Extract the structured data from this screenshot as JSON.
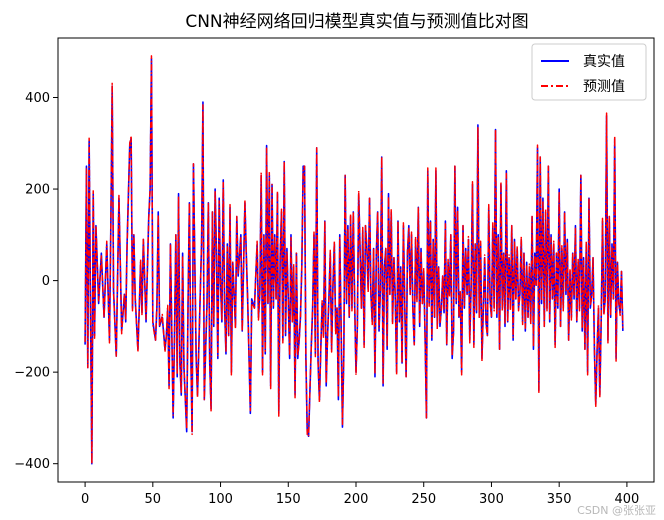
{
  "chart_data": {
    "type": "line",
    "title": "CNN神经网络回归模型真实值与预测值比对图",
    "xlabel": "",
    "ylabel": "",
    "xlim": [
      -20,
      420
    ],
    "ylim": [
      -440,
      530
    ],
    "x_ticks": [
      0,
      50,
      100,
      150,
      200,
      250,
      300,
      350,
      400
    ],
    "y_ticks": [
      -400,
      -200,
      0,
      200,
      400
    ],
    "grid": false,
    "legend_position": "top-right",
    "n_points": 400,
    "key_points": [
      [
        0,
        -140
      ],
      [
        1,
        250
      ],
      [
        2,
        -190
      ],
      [
        3,
        305
      ],
      [
        4,
        -60
      ],
      [
        5,
        -400
      ],
      [
        6,
        190
      ],
      [
        7,
        -120
      ],
      [
        8,
        120
      ],
      [
        10,
        -50
      ],
      [
        12,
        60
      ],
      [
        14,
        -80
      ],
      [
        16,
        80
      ],
      [
        18,
        -130
      ],
      [
        19,
        120
      ],
      [
        20,
        425
      ],
      [
        21,
        -20
      ],
      [
        23,
        -165
      ],
      [
        25,
        180
      ],
      [
        27,
        -110
      ],
      [
        29,
        -30
      ],
      [
        30,
        -90
      ],
      [
        31,
        80
      ],
      [
        33,
        300
      ],
      [
        34,
        310
      ],
      [
        35,
        -60
      ],
      [
        36,
        100
      ],
      [
        37,
        -40
      ],
      [
        39,
        -150
      ],
      [
        40,
        -60
      ],
      [
        41,
        40
      ],
      [
        42,
        -70
      ],
      [
        43,
        90
      ],
      [
        45,
        -90
      ],
      [
        47,
        140
      ],
      [
        48,
        200
      ],
      [
        49,
        485
      ],
      [
        50,
        -90
      ],
      [
        52,
        -130
      ],
      [
        53,
        -60
      ],
      [
        54,
        150
      ],
      [
        55,
        -100
      ],
      [
        57,
        -80
      ],
      [
        59,
        -150
      ],
      [
        60,
        -120
      ],
      [
        61,
        -60
      ],
      [
        62,
        -230
      ],
      [
        63,
        80
      ],
      [
        65,
        -300
      ],
      [
        66,
        -120
      ],
      [
        67,
        100
      ],
      [
        68,
        -210
      ],
      [
        69,
        190
      ],
      [
        70,
        -180
      ],
      [
        71,
        -250
      ],
      [
        72,
        60
      ],
      [
        73,
        -190
      ],
      [
        75,
        -330
      ],
      [
        76,
        -50
      ],
      [
        77,
        170
      ],
      [
        78,
        -150
      ],
      [
        79,
        -330
      ],
      [
        80,
        255
      ],
      [
        82,
        -170
      ],
      [
        83,
        -250
      ],
      [
        85,
        -30
      ],
      [
        86,
        80
      ],
      [
        87,
        390
      ],
      [
        88,
        -260
      ],
      [
        89,
        -150
      ],
      [
        90,
        -50
      ],
      [
        91,
        170
      ],
      [
        92,
        -180
      ],
      [
        93,
        -280
      ],
      [
        94,
        150
      ],
      [
        95,
        -100
      ],
      [
        96,
        200
      ],
      [
        97,
        60
      ],
      [
        98,
        -170
      ],
      [
        99,
        180
      ],
      [
        100,
        -10
      ],
      [
        101,
        -90
      ],
      [
        102,
        220
      ],
      [
        103,
        -60
      ],
      [
        104,
        -160
      ],
      [
        105,
        80
      ],
      [
        106,
        -120
      ],
      [
        107,
        160
      ],
      [
        108,
        -200
      ],
      [
        109,
        40
      ],
      [
        110,
        -30
      ],
      [
        111,
        -100
      ],
      [
        112,
        140
      ],
      [
        113,
        10
      ],
      [
        115,
        100
      ],
      [
        116,
        -110
      ],
      [
        118,
        170
      ],
      [
        119,
        60
      ],
      [
        120,
        -40
      ],
      [
        122,
        -290
      ],
      [
        123,
        -40
      ],
      [
        125,
        -60
      ],
      [
        127,
        80
      ],
      [
        128,
        -80
      ],
      [
        129,
        -30
      ],
      [
        130,
        230
      ],
      [
        131,
        -200
      ],
      [
        132,
        100
      ],
      [
        133,
        -160
      ],
      [
        134,
        295
      ],
      [
        135,
        -50
      ],
      [
        136,
        230
      ],
      [
        137,
        -230
      ],
      [
        138,
        210
      ],
      [
        139,
        -60
      ],
      [
        140,
        100
      ],
      [
        141,
        -40
      ],
      [
        142,
        190
      ],
      [
        143,
        -290
      ],
      [
        144,
        50
      ],
      [
        145,
        150
      ],
      [
        146,
        -130
      ],
      [
        147,
        260
      ],
      [
        148,
        -120
      ],
      [
        149,
        70
      ],
      [
        150,
        -40
      ],
      [
        151,
        -170
      ],
      [
        152,
        100
      ],
      [
        153,
        -90
      ],
      [
        154,
        30
      ],
      [
        155,
        -250
      ],
      [
        156,
        60
      ],
      [
        157,
        -170
      ],
      [
        158,
        -130
      ],
      [
        159,
        -80
      ],
      [
        160,
        30
      ],
      [
        161,
        250
      ],
      [
        162,
        250
      ],
      [
        163,
        -170
      ],
      [
        164,
        -330
      ],
      [
        165,
        -340
      ],
      [
        166,
        -240
      ],
      [
        167,
        -140
      ],
      [
        168,
        -60
      ],
      [
        169,
        100
      ],
      [
        170,
        -160
      ],
      [
        171,
        290
      ],
      [
        172,
        -180
      ],
      [
        173,
        -260
      ],
      [
        174,
        -150
      ],
      [
        175,
        -50
      ],
      [
        176,
        -120
      ],
      [
        177,
        130
      ],
      [
        178,
        -230
      ],
      [
        179,
        -120
      ],
      [
        180,
        -40
      ],
      [
        181,
        60
      ],
      [
        182,
        -150
      ],
      [
        183,
        -10
      ],
      [
        184,
        80
      ],
      [
        185,
        -110
      ],
      [
        186,
        -60
      ],
      [
        187,
        -260
      ],
      [
        188,
        100
      ],
      [
        189,
        -100
      ],
      [
        190,
        -320
      ],
      [
        191,
        -160
      ],
      [
        192,
        230
      ],
      [
        193,
        -50
      ],
      [
        194,
        120
      ],
      [
        195,
        -80
      ],
      [
        196,
        140
      ],
      [
        197,
        -60
      ],
      [
        198,
        150
      ],
      [
        199,
        -50
      ],
      [
        200,
        -200
      ],
      [
        201,
        -100
      ],
      [
        202,
        190
      ],
      [
        203,
        70
      ],
      [
        204,
        -60
      ],
      [
        205,
        110
      ],
      [
        206,
        -140
      ],
      [
        207,
        120
      ],
      [
        208,
        70
      ],
      [
        209,
        -20
      ],
      [
        210,
        180
      ],
      [
        211,
        -30
      ],
      [
        212,
        -90
      ],
      [
        213,
        70
      ],
      [
        214,
        -210
      ],
      [
        215,
        60
      ],
      [
        216,
        150
      ],
      [
        217,
        -110
      ],
      [
        218,
        -20
      ],
      [
        219,
        270
      ],
      [
        220,
        -230
      ],
      [
        221,
        30
      ],
      [
        222,
        70
      ],
      [
        223,
        -150
      ],
      [
        224,
        190
      ],
      [
        225,
        -30
      ],
      [
        226,
        150
      ],
      [
        227,
        -90
      ],
      [
        228,
        50
      ],
      [
        229,
        -40
      ],
      [
        230,
        -200
      ],
      [
        231,
        130
      ],
      [
        232,
        -90
      ],
      [
        233,
        30
      ],
      [
        234,
        -180
      ],
      [
        235,
        120
      ],
      [
        236,
        -50
      ],
      [
        237,
        -210
      ],
      [
        238,
        60
      ],
      [
        239,
        120
      ],
      [
        240,
        -30
      ],
      [
        241,
        100
      ],
      [
        242,
        -60
      ],
      [
        243,
        -140
      ],
      [
        244,
        90
      ],
      [
        245,
        -40
      ],
      [
        246,
        160
      ],
      [
        247,
        -100
      ],
      [
        248,
        70
      ],
      [
        249,
        -50
      ],
      [
        250,
        20
      ],
      [
        251,
        -120
      ],
      [
        252,
        -300
      ],
      [
        253,
        240
      ],
      [
        254,
        -50
      ],
      [
        255,
        130
      ],
      [
        256,
        -130
      ],
      [
        257,
        90
      ],
      [
        258,
        -80
      ],
      [
        259,
        240
      ],
      [
        260,
        -100
      ],
      [
        261,
        30
      ],
      [
        262,
        -100
      ],
      [
        263,
        -60
      ],
      [
        264,
        10
      ],
      [
        265,
        -70
      ],
      [
        266,
        130
      ],
      [
        267,
        -140
      ],
      [
        268,
        40
      ],
      [
        269,
        -30
      ],
      [
        270,
        100
      ],
      [
        271,
        -170
      ],
      [
        272,
        -110
      ],
      [
        273,
        250
      ],
      [
        274,
        -50
      ],
      [
        275,
        160
      ],
      [
        276,
        -80
      ],
      [
        277,
        -30
      ],
      [
        278,
        -200
      ],
      [
        279,
        120
      ],
      [
        280,
        -60
      ],
      [
        281,
        70
      ],
      [
        282,
        -30
      ],
      [
        283,
        90
      ],
      [
        284,
        -130
      ],
      [
        285,
        -10
      ],
      [
        286,
        210
      ],
      [
        287,
        -140
      ],
      [
        288,
        80
      ],
      [
        289,
        -70
      ],
      [
        290,
        340
      ],
      [
        291,
        -80
      ],
      [
        292,
        80
      ],
      [
        293,
        -170
      ],
      [
        294,
        -60
      ],
      [
        295,
        50
      ],
      [
        296,
        -90
      ],
      [
        297,
        -120
      ],
      [
        298,
        160
      ],
      [
        299,
        -40
      ],
      [
        300,
        -80
      ],
      [
        301,
        120
      ],
      [
        302,
        -60
      ],
      [
        303,
        330
      ],
      [
        304,
        -80
      ],
      [
        305,
        100
      ],
      [
        306,
        -150
      ],
      [
        307,
        210
      ],
      [
        308,
        -60
      ],
      [
        309,
        60
      ],
      [
        310,
        -100
      ],
      [
        311,
        240
      ],
      [
        312,
        -90
      ],
      [
        313,
        50
      ],
      [
        314,
        -60
      ],
      [
        315,
        120
      ],
      [
        316,
        -130
      ],
      [
        317,
        90
      ],
      [
        318,
        -40
      ],
      [
        319,
        70
      ],
      [
        320,
        -60
      ],
      [
        321,
        -30
      ],
      [
        322,
        90
      ],
      [
        323,
        -90
      ],
      [
        324,
        60
      ],
      [
        325,
        -110
      ],
      [
        326,
        40
      ],
      [
        327,
        -80
      ],
      [
        328,
        30
      ],
      [
        329,
        -90
      ],
      [
        330,
        140
      ],
      [
        331,
        -150
      ],
      [
        332,
        60
      ],
      [
        333,
        -10
      ],
      [
        334,
        290
      ],
      [
        335,
        -240
      ],
      [
        336,
        270
      ],
      [
        337,
        -50
      ],
      [
        338,
        180
      ],
      [
        339,
        -100
      ],
      [
        340,
        150
      ],
      [
        341,
        -60
      ],
      [
        342,
        250
      ],
      [
        343,
        -90
      ],
      [
        344,
        100
      ],
      [
        345,
        -40
      ],
      [
        346,
        80
      ],
      [
        347,
        -140
      ],
      [
        348,
        60
      ],
      [
        349,
        -60
      ],
      [
        350,
        200
      ],
      [
        351,
        -100
      ],
      [
        352,
        70
      ],
      [
        353,
        -60
      ],
      [
        354,
        150
      ],
      [
        355,
        -30
      ],
      [
        356,
        90
      ],
      [
        357,
        -130
      ],
      [
        358,
        20
      ],
      [
        359,
        -80
      ],
      [
        360,
        60
      ],
      [
        361,
        -40
      ],
      [
        362,
        120
      ],
      [
        363,
        -90
      ],
      [
        364,
        40
      ],
      [
        365,
        -60
      ],
      [
        366,
        230
      ],
      [
        367,
        -110
      ],
      [
        368,
        50
      ],
      [
        369,
        -150
      ],
      [
        370,
        80
      ],
      [
        371,
        -200
      ],
      [
        372,
        180
      ],
      [
        373,
        -60
      ],
      [
        374,
        -30
      ],
      [
        375,
        50
      ],
      [
        376,
        -150
      ],
      [
        377,
        -270
      ],
      [
        378,
        -150
      ],
      [
        379,
        -60
      ],
      [
        380,
        -250
      ],
      [
        381,
        -90
      ],
      [
        382,
        130
      ],
      [
        383,
        -70
      ],
      [
        384,
        -40
      ],
      [
        385,
        360
      ],
      [
        386,
        -130
      ],
      [
        387,
        140
      ],
      [
        388,
        -80
      ],
      [
        389,
        80
      ],
      [
        390,
        -40
      ],
      [
        391,
        310
      ],
      [
        392,
        -170
      ],
      [
        393,
        40
      ],
      [
        394,
        -50
      ],
      [
        395,
        -70
      ],
      [
        396,
        20
      ],
      [
        397,
        -110
      ]
    ],
    "series": [
      {
        "name": "真实值",
        "color": "#0000ff",
        "line_style": "solid",
        "offset": 0
      },
      {
        "name": "预测值",
        "color": "#ff0000",
        "line_style": "dash-dot",
        "offset": 6
      }
    ]
  },
  "watermark": "CSDN @张张亚"
}
